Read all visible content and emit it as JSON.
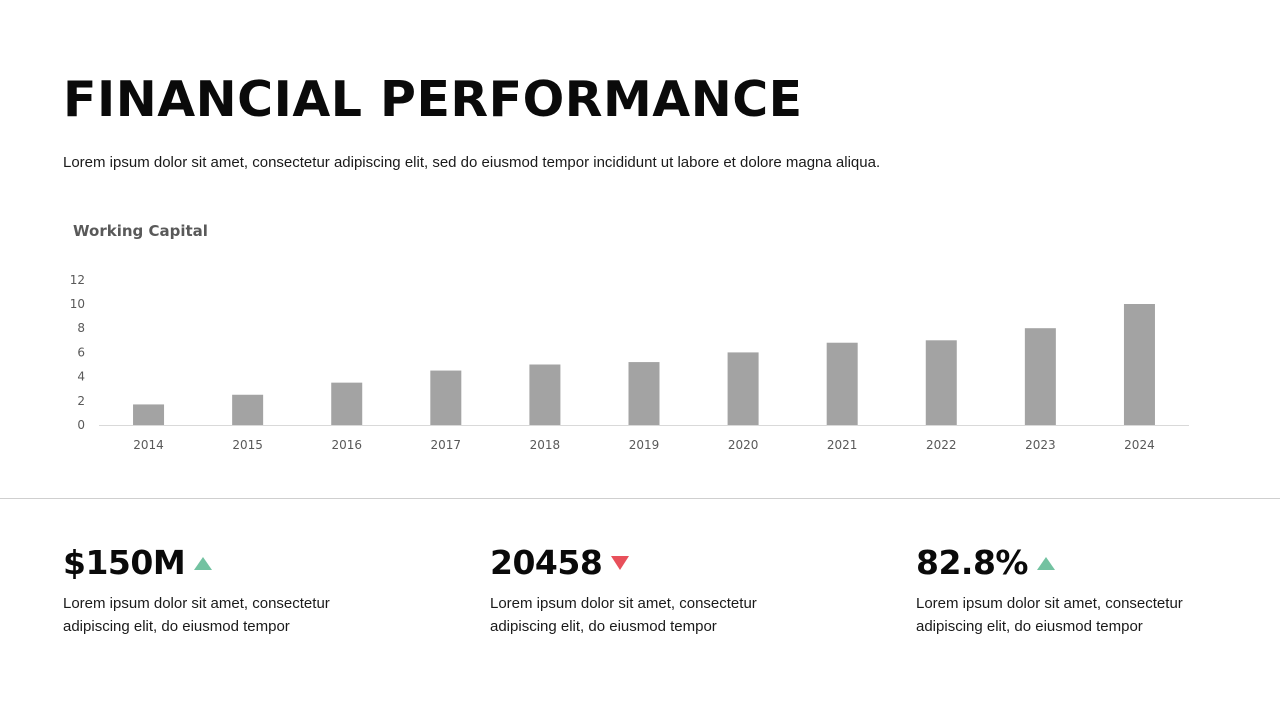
{
  "header": {
    "title": "FINANCIAL PERFORMANCE",
    "subtitle": "Lorem ipsum dolor sit amet, consectetur adipiscing elit, sed do eiusmod tempor incididunt ut labore et dolore magna aliqua."
  },
  "chart_data": {
    "type": "bar",
    "title": "Working Capital",
    "xlabel": "",
    "ylabel": "",
    "categories": [
      "2014",
      "2015",
      "2016",
      "2017",
      "2018",
      "2019",
      "2020",
      "2021",
      "2022",
      "2023",
      "2024"
    ],
    "values": [
      1.7,
      2.5,
      3.5,
      4.5,
      5.0,
      5.2,
      6.0,
      6.8,
      7.0,
      8.0,
      10.0
    ],
    "ylim": [
      0,
      12
    ],
    "yticks": [
      "0",
      "2",
      "4",
      "6",
      "8",
      "10",
      "12"
    ],
    "grid": false,
    "bar_color": "#a3a3a3"
  },
  "stats": [
    {
      "value": "$150M",
      "trend": "up",
      "description": "Lorem ipsum dolor sit amet, consectetur adipiscing elit, do eiusmod tempor"
    },
    {
      "value": "20458",
      "trend": "down",
      "description": "Lorem ipsum dolor sit amet, consectetur adipiscing elit, do eiusmod tempor"
    },
    {
      "value": "82.8%",
      "trend": "up",
      "description": "Lorem ipsum dolor sit amet, consectetur adipiscing elit, do eiusmod tempor"
    }
  ],
  "colors": {
    "up": "#73c2a1",
    "down": "#e8505b"
  }
}
